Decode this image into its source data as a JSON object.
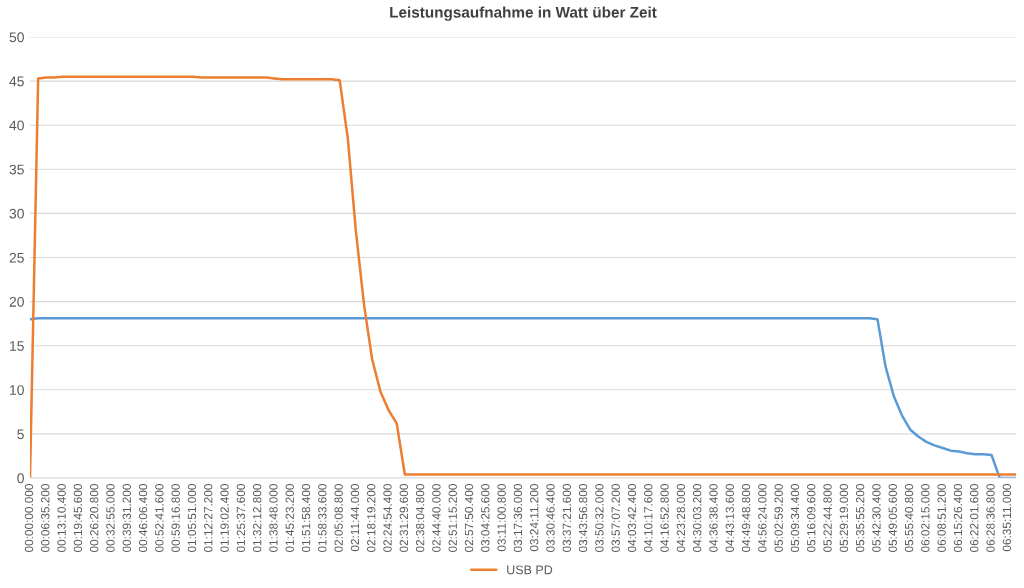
{
  "chart_data": {
    "type": "line",
    "title": "Leistungsaufnahme in Watt über Zeit",
    "ylim": [
      0,
      50
    ],
    "yticks": [
      0,
      5,
      10,
      15,
      20,
      25,
      30,
      35,
      40,
      45,
      50
    ],
    "categories": [
      "00:00:00.000",
      null,
      "00:06:35.200",
      null,
      "00:13:10.400",
      null,
      "00:19:45.600",
      null,
      "00:26:20.800",
      null,
      "00:32:55.000",
      null,
      "00:39:31.200",
      null,
      "00:46:06.400",
      null,
      "00:52:41.600",
      null,
      "00:59:16.800",
      null,
      "01:05:51.000",
      null,
      "01:12:27.200",
      null,
      "01:19:02.400",
      null,
      "01:25:37.600",
      null,
      "01:32:12.800",
      null,
      "01:38:48.000",
      null,
      "01:45:23.200",
      null,
      "01:51:58.400",
      null,
      "01:58:33.600",
      null,
      "02:05:08.800",
      null,
      "02:11:44.000",
      null,
      "02:18:19.200",
      null,
      "02:24:54.400",
      null,
      "02:31:29.600",
      null,
      "02:38:04.800",
      null,
      "02:44:40.000",
      null,
      "02:51:15.200",
      null,
      "02:57:50.400",
      null,
      "03:04:25.600",
      null,
      "03:11:00.800",
      null,
      "03:17:36.000",
      null,
      "03:24:11.200",
      null,
      "03:30:46.400",
      null,
      "03:37:21.600",
      null,
      "03:43:56.800",
      null,
      "03:50:32.000",
      null,
      "03:57:07.200",
      null,
      "04:03:42.400",
      null,
      "04:10:17.600",
      null,
      "04:16:52.800",
      null,
      "04:23:28.000",
      null,
      "04:30:03.200",
      null,
      "04:36:38.400",
      null,
      "04:43:13.600",
      null,
      "04:49:48.800",
      null,
      "04:56:24.000",
      null,
      "05:02:59.200",
      null,
      "05:09:34.400",
      null,
      "05:16:09.600",
      null,
      "05:22:44.800",
      null,
      "05:29:19.000",
      null,
      "05:35:55.200",
      null,
      "05:42:30.400",
      null,
      "05:49:05.600",
      null,
      "05:55:40.800",
      null,
      "06:02:15.000",
      null,
      "06:08:51.200",
      null,
      "06:15:26.400",
      null,
      "06:22:01.600",
      null,
      "06:28:36.800",
      null,
      "06:35:11.000",
      null
    ],
    "grid": "y",
    "legend": "bottom",
    "series": [
      {
        "color": "#5b9bd5",
        "values": [
          18.0,
          18.1,
          18.1,
          18.1,
          18.1,
          18.1,
          18.1,
          18.1,
          18.1,
          18.1,
          18.1,
          18.1,
          18.1,
          18.1,
          18.1,
          18.1,
          18.1,
          18.1,
          18.1,
          18.1,
          18.1,
          18.1,
          18.1,
          18.1,
          18.1,
          18.1,
          18.1,
          18.1,
          18.1,
          18.1,
          18.1,
          18.1,
          18.1,
          18.1,
          18.1,
          18.1,
          18.1,
          18.1,
          18.1,
          18.1,
          18.1,
          18.1,
          18.1,
          18.1,
          18.1,
          18.1,
          18.1,
          18.1,
          18.1,
          18.1,
          18.1,
          18.1,
          18.1,
          18.1,
          18.1,
          18.1,
          18.1,
          18.1,
          18.1,
          18.1,
          18.1,
          18.1,
          18.1,
          18.1,
          18.1,
          18.1,
          18.1,
          18.1,
          18.1,
          18.1,
          18.1,
          18.1,
          18.1,
          18.1,
          18.1,
          18.1,
          18.1,
          18.1,
          18.1,
          18.1,
          18.1,
          18.1,
          18.1,
          18.1,
          18.1,
          18.1,
          18.1,
          18.1,
          18.1,
          18.1,
          18.1,
          18.1,
          18.1,
          18.1,
          18.1,
          18.1,
          18.1,
          18.1,
          18.1,
          18.1,
          18.1,
          18.1,
          18.1,
          18.1,
          18.0,
          12.6,
          9.3,
          7.1,
          5.5,
          4.7,
          4.1,
          3.7,
          3.4,
          3.1,
          3.0,
          2.8,
          2.7,
          2.7,
          2.6,
          0.0,
          0.0,
          0.0
        ]
      },
      {
        "name": "USB PD",
        "color": "#ed7d31",
        "values": [
          0,
          45.3,
          45.4,
          45.4,
          45.5,
          45.5,
          45.5,
          45.5,
          45.5,
          45.5,
          45.5,
          45.5,
          45.5,
          45.5,
          45.5,
          45.5,
          45.5,
          45.5,
          45.5,
          45.5,
          45.5,
          45.4,
          45.4,
          45.4,
          45.4,
          45.4,
          45.4,
          45.4,
          45.4,
          45.4,
          45.3,
          45.2,
          45.2,
          45.2,
          45.2,
          45.2,
          45.2,
          45.2,
          45.1,
          38.5,
          27.9,
          19.6,
          13.4,
          9.8,
          7.7,
          6.2,
          0.4,
          0.4,
          0.4,
          0.4,
          0.4,
          0.4,
          0.4,
          0.4,
          0.4,
          0.4,
          0.4,
          0.4,
          0.4,
          0.4,
          0.4,
          0.4,
          0.4,
          0.4,
          0.4,
          0.4,
          0.4,
          0.4,
          0.4,
          0.4,
          0.4,
          0.4,
          0.4,
          0.4,
          0.4,
          0.4,
          0.4,
          0.4,
          0.4,
          0.4,
          0.4,
          0.4,
          0.4,
          0.4,
          0.4,
          0.4,
          0.4,
          0.4,
          0.4,
          0.4,
          0.4,
          0.4,
          0.4,
          0.4,
          0.4,
          0.4,
          0.4,
          0.4,
          0.4,
          0.4,
          0.4,
          0.4,
          0.4,
          0.4,
          0.4,
          0.4,
          0.4,
          0.4,
          0.4,
          0.4,
          0.4,
          0.4,
          0.4,
          0.4,
          0.4,
          0.4,
          0.4,
          0.4,
          0.4,
          0.4,
          0.4,
          0.4
        ]
      }
    ]
  }
}
